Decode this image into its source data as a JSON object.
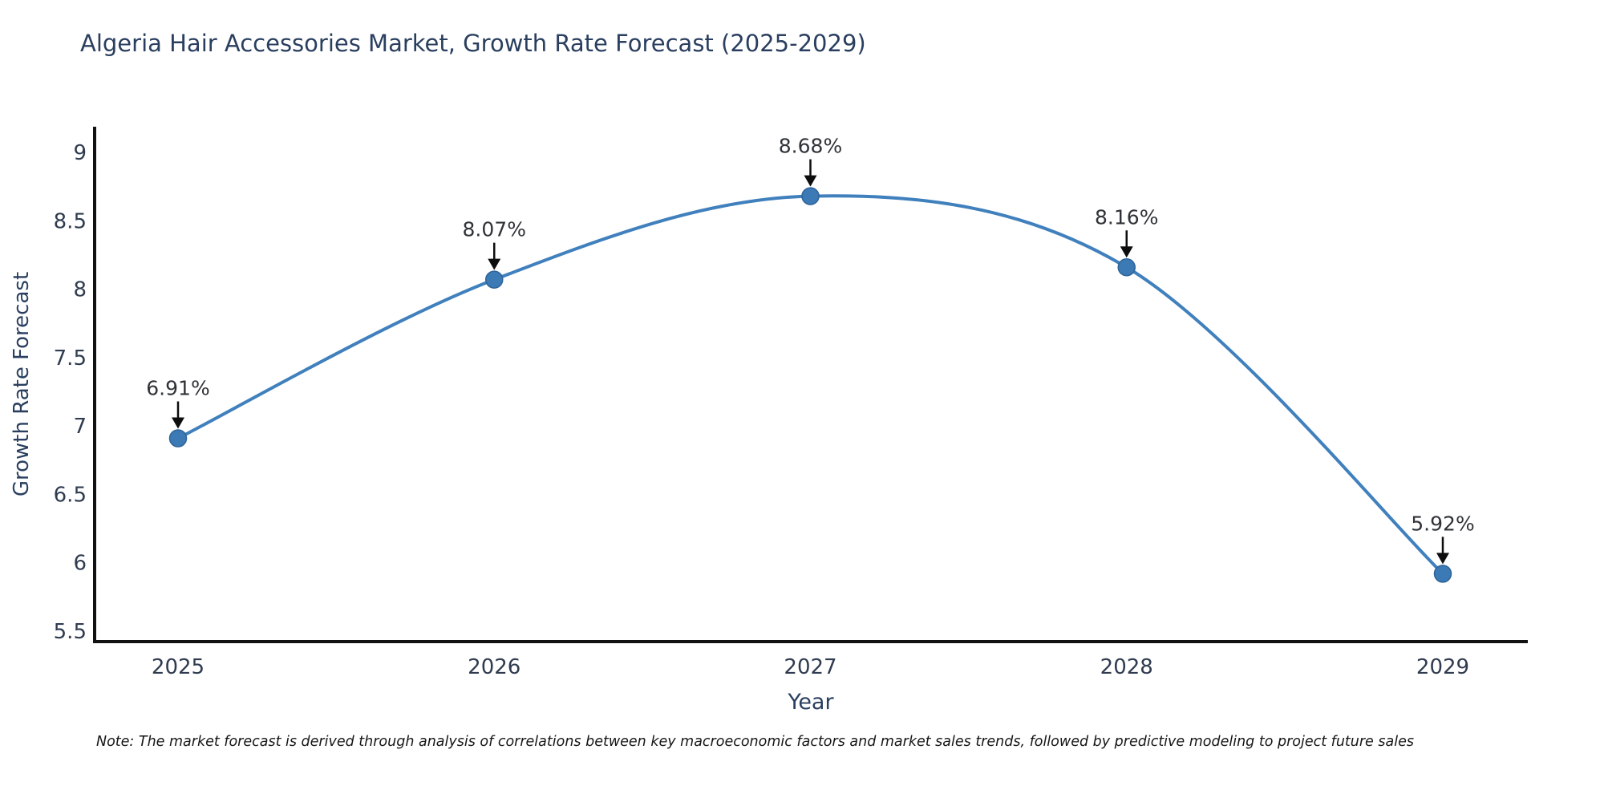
{
  "header": {
    "title": "Algeria Hair Accessories Market, Growth Rate Forecast (2025-2029)"
  },
  "chart_data": {
    "type": "line",
    "title": "Algeria Hair Accessories Market, Growth Rate Forecast (2025-2029)",
    "x": [
      "2025",
      "2026",
      "2027",
      "2028",
      "2029"
    ],
    "series": [
      {
        "name": "Growth Rate Forecast",
        "values": [
          6.91,
          8.07,
          8.68,
          8.16,
          5.92
        ]
      }
    ],
    "point_labels": [
      "6.91%",
      "8.07%",
      "8.68%",
      "8.16%",
      "5.92%"
    ],
    "xlabel": "Year",
    "ylabel": "Growth Rate Forecast",
    "ylim": [
      5.5,
      9
    ],
    "yticks": [
      9,
      8.5,
      8,
      7.5,
      7,
      6.5,
      6,
      5.5
    ],
    "grid": false,
    "legend": "none",
    "line_shape": "spline",
    "colors": {
      "line": "#4080bd",
      "marker_fill": "#3c7ab5",
      "marker_edge": "#2e6399",
      "axis": "#121212",
      "tick_label": "#2f3b4f",
      "title": "#2a3f5f",
      "annotation_text": "#2f3338",
      "annotation_arrow": "#0d0d0d",
      "background": "#ffffff"
    }
  },
  "footnote": {
    "text": "Note: The market forecast is derived through analysis of correlations between key macroeconomic factors and market sales trends, followed by predictive modeling to project future sales"
  }
}
